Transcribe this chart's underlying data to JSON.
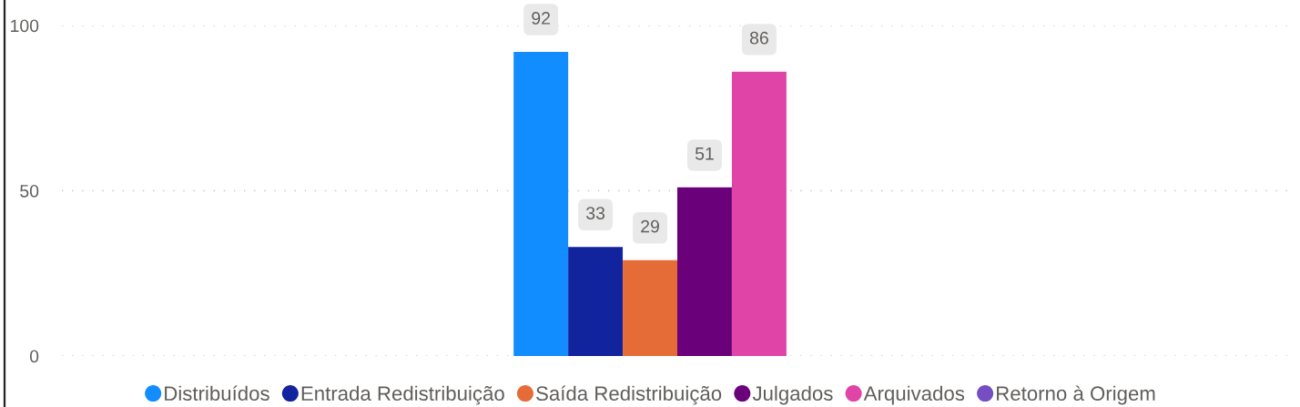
{
  "chart_data": {
    "type": "bar",
    "categories": [
      null
    ],
    "series": [
      {
        "name": "Distribuídos",
        "color": "#118dff",
        "values": [
          92
        ]
      },
      {
        "name": "Entrada Redistribuição",
        "color": "#12239e",
        "values": [
          33
        ]
      },
      {
        "name": "Saída Redistribuição",
        "color": "#e66c37",
        "values": [
          29
        ]
      },
      {
        "name": "Julgados",
        "color": "#6b007b",
        "values": [
          51
        ]
      },
      {
        "name": "Arquivados",
        "color": "#e044a7",
        "values": [
          86
        ]
      },
      {
        "name": "Retorno à Origem",
        "color": "#744ec2",
        "values": [
          null
        ]
      }
    ],
    "ylim": [
      0,
      100
    ],
    "yticks": [
      0,
      50,
      100
    ],
    "grid": "y",
    "legend": "bottom",
    "data_labels": true
  }
}
